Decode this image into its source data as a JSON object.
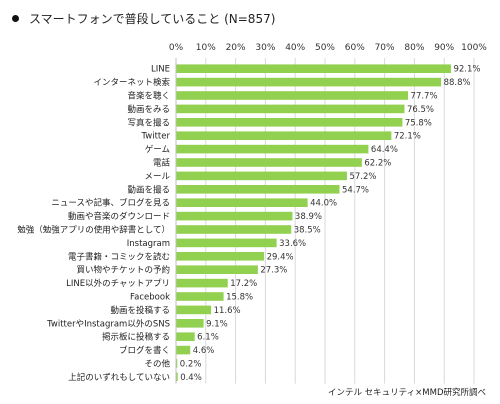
{
  "chart_data": {
    "type": "bar",
    "orientation": "horizontal",
    "title": "スマートフォンで普段していること (N=857)",
    "source": "インテル セキュリティ×MMD研究所調べ",
    "xlim": [
      0,
      100
    ],
    "tick_labels": [
      "0%",
      "10%",
      "20%",
      "30%",
      "40%",
      "50%",
      "60%",
      "70%",
      "80%",
      "90%",
      "100%"
    ],
    "grid": true,
    "bar_color": "#92d050",
    "categories": [
      "LINE",
      "インターネット検索",
      "音楽を聴く",
      "動画をみる",
      "写真を撮る",
      "Twitter",
      "ゲーム",
      "電話",
      "メール",
      "動画を撮る",
      "ニュースや記事、ブログを見る",
      "動画や音楽のダウンロード",
      "勉強（勉強アプリの使用や辞書として）",
      "Instagram",
      "電子書籍・コミックを読む",
      "買い物やチケットの予約",
      "LINE以外のチャットアプリ",
      "Facebook",
      "動画を投稿する",
      "TwitterやInstagram以外のSNS",
      "掲示板に投稿する",
      "ブログを書く",
      "その他",
      "上記のいずれもしていない"
    ],
    "values": [
      92.1,
      88.8,
      77.7,
      76.5,
      75.8,
      72.1,
      64.4,
      62.2,
      57.2,
      54.7,
      44.0,
      38.9,
      38.5,
      33.6,
      29.4,
      27.3,
      17.2,
      15.8,
      11.6,
      9.1,
      6.1,
      4.6,
      0.2,
      0.4
    ],
    "value_labels": [
      "92.1%",
      "88.8%",
      "77.7%",
      "76.5%",
      "75.8%",
      "72.1%",
      "64.4%",
      "62.2%",
      "57.2%",
      "54.7%",
      "44.0%",
      "38.9%",
      "38.5%",
      "33.6%",
      "29.4%",
      "27.3%",
      "17.2%",
      "15.8%",
      "11.6%",
      "9.1%",
      "6.1%",
      "4.6%",
      "0.2%",
      "0.4%"
    ]
  }
}
